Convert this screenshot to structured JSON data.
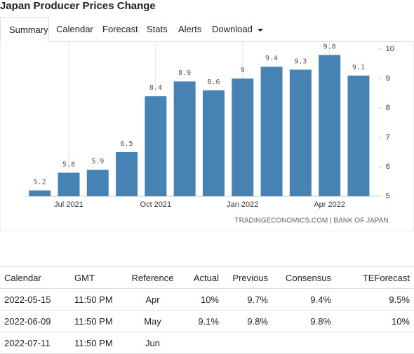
{
  "header": {
    "title": "Japan Producer Prices Change"
  },
  "tabs": [
    "Summary",
    "Calendar",
    "Forecast",
    "Stats",
    "Alerts",
    "Download"
  ],
  "chart_data": {
    "type": "bar",
    "categories": [
      null,
      "Jul 2021",
      null,
      null,
      "Oct 2021",
      null,
      null,
      "Jan 2022",
      null,
      null,
      "Apr 2022",
      null
    ],
    "values": [
      5.2,
      5.8,
      5.9,
      6.5,
      8.4,
      8.9,
      8.6,
      9,
      9.4,
      9.3,
      9.8,
      9.1
    ],
    "color": "#4682b4",
    "ylim": [
      5,
      10
    ],
    "yticks": [
      5,
      6,
      7,
      8,
      9,
      10
    ],
    "source": "TRADINGECONOMICS.COM | BANK OF JAPAN"
  },
  "table": {
    "header": [
      "Calendar",
      "GMT",
      "Reference",
      "Actual",
      "Previous",
      "Consensus",
      "TEForecast"
    ],
    "rows": [
      [
        "2022-05-15",
        "11:50 PM",
        "Apr",
        "10%",
        "9.7%",
        "9.4%",
        "9.5%"
      ],
      [
        "2022-06-09",
        "11:50 PM",
        "May",
        "9.1%",
        "9.8%",
        "9.8%",
        "10%"
      ],
      [
        "2022-07-11",
        "11:50 PM",
        "Jun",
        "",
        "",
        "",
        ""
      ]
    ]
  }
}
